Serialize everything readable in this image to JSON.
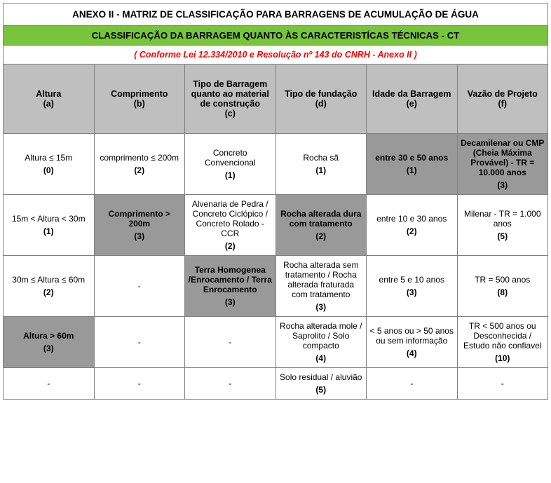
{
  "title": "ANEXO II - MATRIZ DE CLASSIFICAÇÃO PARA BARRAGENS DE ACUMULAÇÃO DE ÁGUA",
  "subtitle": "CLASSIFICAÇÃO DA BARRAGEM QUANTO ÀS CARACTERISTÍCAS TÉCNICAS - CT",
  "reference": "( Conforme Lei 12.334/2010 e Resolução nº 143 do CNRH - Anexo II )",
  "colors": {
    "green": "#78c43c",
    "header_gray": "#bfbfbf",
    "highlight_gray": "#999999",
    "border": "#808080",
    "red": "#ff0000"
  },
  "columns": [
    {
      "label": "Altura",
      "sub": "(a)"
    },
    {
      "label": "Comprimento",
      "sub": "(b)"
    },
    {
      "label": "Tipo de Barragem quanto ao material de construção",
      "sub": "(c)"
    },
    {
      "label": "Tipo de fundação",
      "sub": "(d)"
    },
    {
      "label": "Idade da Barragem",
      "sub": "(e)"
    },
    {
      "label": "Vazão de Projeto",
      "sub": "(f)"
    }
  ],
  "rows": [
    [
      {
        "label": "Altura ≤ 15m",
        "score": "(0)",
        "hl": false
      },
      {
        "label": "comprimento ≤ 200m",
        "score": "(2)",
        "hl": false
      },
      {
        "label": "Concreto Convencional",
        "score": "(1)",
        "hl": false
      },
      {
        "label": "Rocha sã",
        "score": "(1)",
        "hl": false
      },
      {
        "label": "entre 30 e 50 anos",
        "score": "(1)",
        "hl": true
      },
      {
        "label": "Decamilenar ou CMP (Cheia Máxima Provável) - TR = 10.000 anos",
        "score": "(3)",
        "hl": true
      }
    ],
    [
      {
        "label": "15m < Altura < 30m",
        "score": "(1)",
        "hl": false
      },
      {
        "label": "Comprimento > 200m",
        "score": "(3)",
        "hl": true
      },
      {
        "label": "Alvenaria de Pedra / Concreto Ciclópico / Concreto Rolado - CCR",
        "score": "(2)",
        "hl": false
      },
      {
        "label": "Rocha alterada dura com tratamento",
        "score": "(2)",
        "hl": true
      },
      {
        "label": "entre 10 e 30 anos",
        "score": "(2)",
        "hl": false
      },
      {
        "label": "Milenar - TR = 1.000 anos",
        "score": "(5)",
        "hl": false
      }
    ],
    [
      {
        "label": "30m ≤ Altura ≤ 60m",
        "score": "(2)",
        "hl": false
      },
      {
        "label": "-",
        "score": "",
        "hl": false
      },
      {
        "label": "Terra Homogenea /Enrocamento / Terra Enrocamento",
        "score": "(3)",
        "hl": true
      },
      {
        "label": "Rocha alterada sem tratamento / Rocha alterada fraturada com tratamento",
        "score": "(3)",
        "hl": false
      },
      {
        "label": "entre 5 e 10 anos",
        "score": "(3)",
        "hl": false
      },
      {
        "label": "TR = 500 anos",
        "score": "(8)",
        "hl": false
      }
    ],
    [
      {
        "label": "Altura  > 60m",
        "score": "(3)",
        "hl": true
      },
      {
        "label": "-",
        "score": "",
        "hl": false
      },
      {
        "label": "-",
        "score": "",
        "hl": false
      },
      {
        "label": "Rocha alterada mole / Saprolito / Solo compacto",
        "score": "(4)",
        "hl": false
      },
      {
        "label": "< 5 anos ou > 50 anos   ou sem informação",
        "score": "(4)",
        "hl": false
      },
      {
        "label": "TR <  500 anos ou Desconhecida / Estudo não confiavel",
        "score": "(10)",
        "hl": false
      }
    ],
    [
      {
        "label": "-",
        "score": "",
        "hl": false
      },
      {
        "label": "-",
        "score": "",
        "hl": false
      },
      {
        "label": "-",
        "score": "",
        "hl": false
      },
      {
        "label": "Solo residual / aluvião",
        "score": "(5)",
        "hl": false
      },
      {
        "label": "-",
        "score": "",
        "hl": false
      },
      {
        "label": "-",
        "score": "",
        "hl": false
      }
    ]
  ]
}
